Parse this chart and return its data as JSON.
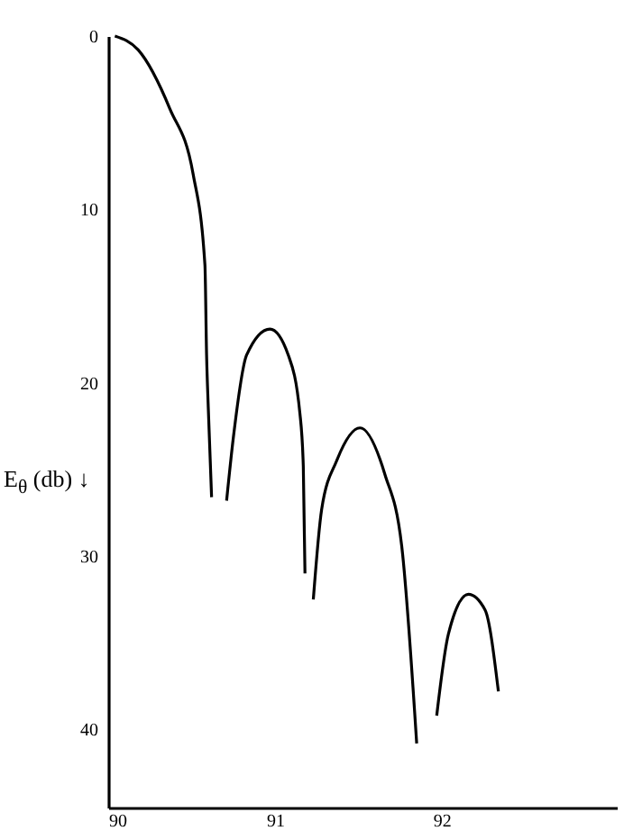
{
  "chart_data": {
    "type": "line",
    "ylabel": "E$_{θ}$ (db) ↓",
    "xlim": [
      90,
      93.05
    ],
    "xticks": [
      90,
      91,
      92
    ],
    "ylim": [
      44.5,
      0
    ],
    "yticks": [
      0,
      10,
      20,
      30,
      40
    ],
    "grid": false,
    "marker": "none",
    "line_style": "solid",
    "series": [
      {
        "color": "#000000",
        "x": [
          90.04,
          90.18,
          90.37,
          90.51,
          90.58,
          90.59,
          90.6,
          90.62
        ],
        "values": [
          0,
          0.8,
          4.2,
          8.0,
          13.2,
          18.4,
          21.4,
          26.6
        ]
      },
      {
        "color": "#000000",
        "x": [
          90.71,
          90.75,
          90.83,
          90.97,
          91.08,
          91.15,
          91.17,
          91.18
        ],
        "values": [
          26.8,
          23.2,
          18.4,
          16.9,
          18.4,
          21.8,
          24.8,
          31.0
        ]
      },
      {
        "color": "#000000",
        "x": [
          91.23,
          91.28,
          91.37,
          91.51,
          91.66,
          91.76,
          91.85
        ],
        "values": [
          32.5,
          27.3,
          24.5,
          22.6,
          25.3,
          29.4,
          40.8
        ]
      },
      {
        "color": "#000000",
        "x": [
          91.97,
          92.04,
          92.16,
          92.26,
          92.34
        ],
        "values": [
          39.2,
          34.5,
          32.2,
          33.1,
          37.8
        ]
      }
    ]
  }
}
